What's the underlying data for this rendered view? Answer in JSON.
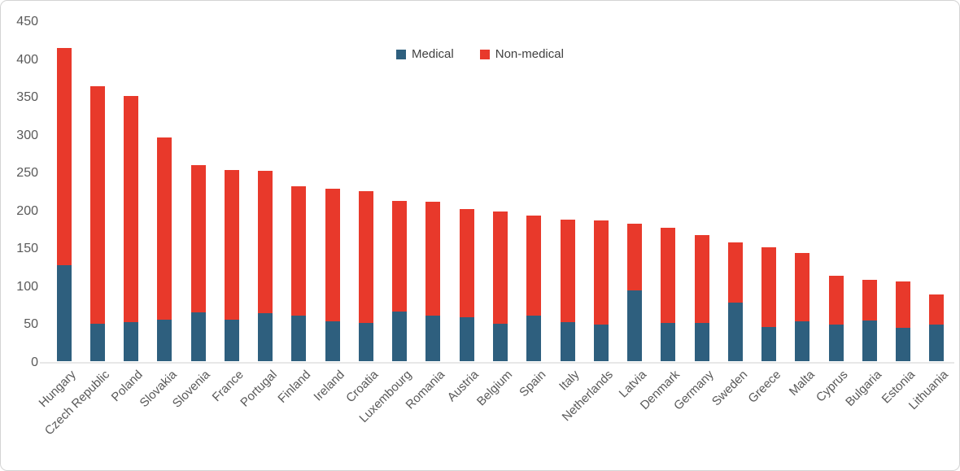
{
  "chart_data": {
    "type": "bar",
    "stacked": true,
    "title": "",
    "categories": [
      "Hungary",
      "Czech Republic",
      "Poland",
      "Slovakia",
      "Slovenia",
      "France",
      "Portugal",
      "Finland",
      "Ireland",
      "Croatia",
      "Luxembourg",
      "Romania",
      "Austria",
      "Belgium",
      "Spain",
      "Italy",
      "Netherlands",
      "Latvia",
      "Denmark",
      "Germany",
      "Sweden",
      "Greece",
      "Malta",
      "Cyprus",
      "Bulgaria",
      "Estonia",
      "Lithuania"
    ],
    "series": [
      {
        "name": "Medical",
        "color": "#2e5f7e",
        "values": [
          127,
          49,
          52,
          55,
          64,
          55,
          63,
          60,
          53,
          50,
          66,
          60,
          58,
          49,
          60,
          52,
          48,
          93,
          51,
          50,
          77,
          45,
          53,
          48,
          54,
          44,
          48
        ]
      },
      {
        "name": "Non-medical",
        "color": "#e8392b",
        "values": [
          286,
          314,
          298,
          240,
          195,
          197,
          188,
          171,
          175,
          174,
          146,
          151,
          143,
          149,
          132,
          135,
          138,
          89,
          125,
          117,
          80,
          105,
          90,
          65,
          53,
          61,
          40
        ]
      }
    ],
    "totals": [
      413,
      363,
      350,
      295,
      259,
      252,
      251,
      231,
      228,
      224,
      212,
      211,
      201,
      198,
      192,
      187,
      186,
      182,
      176,
      167,
      157,
      150,
      143,
      113,
      107,
      105,
      88
    ],
    "y_axis": {
      "min": 0,
      "max": 450,
      "step": 50,
      "tick_labels": [
        "450",
        "400",
        "350",
        "300",
        "250",
        "200",
        "150",
        "100",
        "50",
        "0"
      ]
    },
    "x_label_rotation_deg": -45,
    "legend_position": "top-center",
    "grid": "off",
    "colors": {
      "axis_text": "#595959",
      "legend_text": "#404040",
      "baseline": "#e8e8e8",
      "card_border": "#d4d4d4",
      "background": "#ffffff"
    }
  }
}
